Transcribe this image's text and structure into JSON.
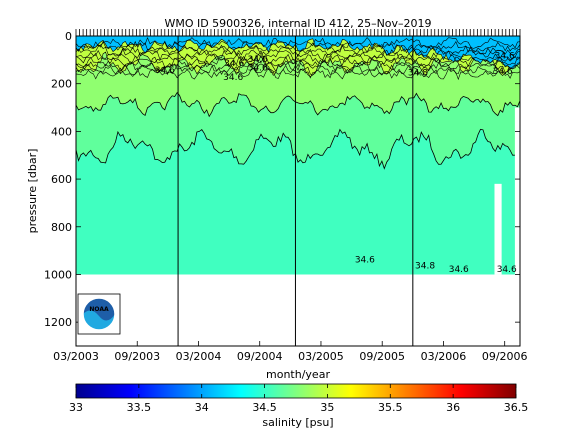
{
  "chart_data": {
    "type": "heatmap",
    "title": "WMO ID 5900326, internal ID 412, 25–Nov–2019",
    "xlabel": "month/year",
    "ylabel": "pressure [dbar]",
    "x_tick_labels": [
      "03/2003",
      "09/2003",
      "03/2004",
      "09/2004",
      "03/2005",
      "09/2005",
      "03/2006",
      "09/2006"
    ],
    "x_tick_months": [
      0,
      6,
      12,
      18,
      24,
      30,
      36,
      42
    ],
    "xlim_months": [
      0,
      43.5
    ],
    "y_ticks": [
      0,
      200,
      400,
      600,
      800,
      1000,
      1200
    ],
    "ylim": [
      0,
      1300
    ],
    "y_reversed": true,
    "profile_max_pressure": 1000,
    "year_boundary_months": [
      10,
      21.5,
      33
    ],
    "contour_labels": [
      {
        "text": "34.6",
        "month": 17.8,
        "pressure": 110
      },
      {
        "text": "34.6",
        "month": 15.5,
        "pressure": 125
      },
      {
        "text": "34.8",
        "month": 33.5,
        "pressure": 165
      },
      {
        "text": "34.6",
        "month": 42.0,
        "pressure": 95
      },
      {
        "text": "34.6",
        "month": 15.4,
        "pressure": 185
      },
      {
        "text": "34.6",
        "month": 8.7,
        "pressure": 155
      },
      {
        "text": "34.6",
        "month": 17.8,
        "pressure": 145
      },
      {
        "text": "34.6",
        "month": 41.8,
        "pressure": 160
      },
      {
        "text": "34.6",
        "month": 28.3,
        "pressure": 950
      },
      {
        "text": "34.8",
        "month": 34.2,
        "pressure": 975
      },
      {
        "text": "34.6",
        "month": 37.5,
        "pressure": 990
      },
      {
        "text": "34.6",
        "month": 42.2,
        "pressure": 990
      }
    ],
    "colorbar": {
      "label": "salinity [psu]",
      "range": [
        33,
        36.5
      ],
      "ticks": [
        "33",
        "33.5",
        "34",
        "34.5",
        "35",
        "35.5",
        "36",
        "36.5"
      ],
      "colormap": "jet"
    },
    "fill_colors": {
      "deep": "#40ffc0",
      "mid": "#60ff9c",
      "upper": "#90ff70",
      "surface_low": "#00c0ff",
      "surface_high": "#c0ff40"
    },
    "grid": false,
    "legend": "none"
  },
  "logo": {
    "name": "noaa-logo",
    "text": "NOAA"
  }
}
